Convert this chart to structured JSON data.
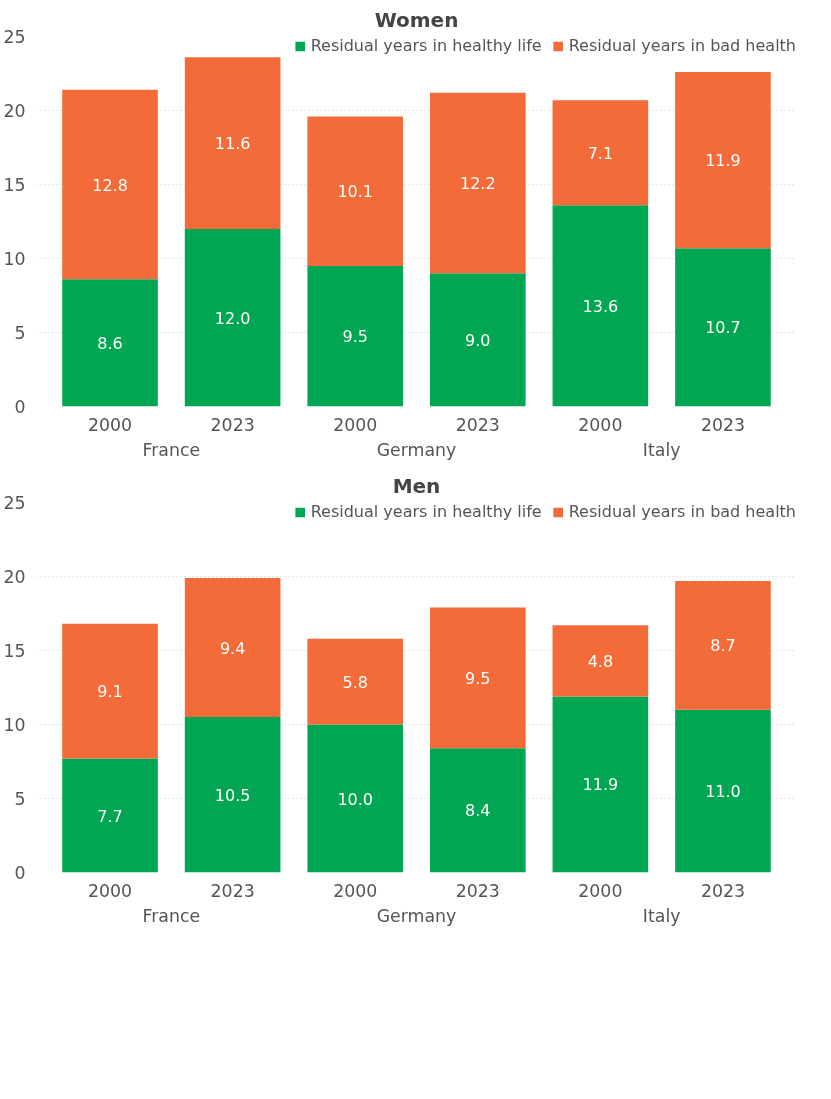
{
  "chart_data": [
    {
      "type": "bar",
      "title": "Women",
      "stacked": true,
      "categories": [
        "2000",
        "2023",
        "2000",
        "2023",
        "2000",
        "2023"
      ],
      "annotations": [
        "France",
        "Germany",
        "Italy"
      ],
      "series": [
        {
          "name": "Residual years in healthy life",
          "color": "#00a651",
          "values": [
            8.6,
            12.0,
            9.5,
            9.0,
            13.6,
            10.7
          ],
          "value_labels": [
            "8.6",
            "12.0",
            "9.5",
            "9.0",
            "13.6",
            "10.7"
          ]
        },
        {
          "name": "Residual years in bad health",
          "color": "#f26b38",
          "values": [
            12.8,
            11.6,
            10.1,
            12.2,
            7.1,
            11.9
          ],
          "value_labels": [
            "12.8",
            "11.6",
            "10.1",
            "12.2",
            "7.1",
            "11.9"
          ]
        }
      ],
      "ylim": [
        0,
        25
      ],
      "yticks": [
        0,
        5,
        10,
        15,
        20,
        25
      ],
      "grid": "y",
      "legend": "top right",
      "data_labels": true
    },
    {
      "type": "bar",
      "title": "Men",
      "stacked": true,
      "categories": [
        "2000",
        "2023",
        "2000",
        "2023",
        "2000",
        "2023"
      ],
      "annotations": [
        "France",
        "Germany",
        "Italy"
      ],
      "series": [
        {
          "name": "Residual years in healthy life",
          "color": "#00a651",
          "values": [
            7.7,
            10.5,
            10.0,
            8.4,
            11.9,
            11.0
          ],
          "value_labels": [
            "7.7",
            "10.5",
            "10.0",
            "8.4",
            "11.9",
            "11.0"
          ]
        },
        {
          "name": "Residual years in bad health",
          "color": "#f26b38",
          "values": [
            9.1,
            9.4,
            5.8,
            9.5,
            4.8,
            8.7
          ],
          "value_labels": [
            "9.1",
            "9.4",
            "5.8",
            "9.5",
            "4.8",
            "8.7"
          ]
        }
      ],
      "ylim": [
        0,
        25
      ],
      "yticks": [
        0,
        5,
        10,
        15,
        20,
        25
      ],
      "grid": "y",
      "legend": "top right",
      "data_labels": true
    }
  ]
}
